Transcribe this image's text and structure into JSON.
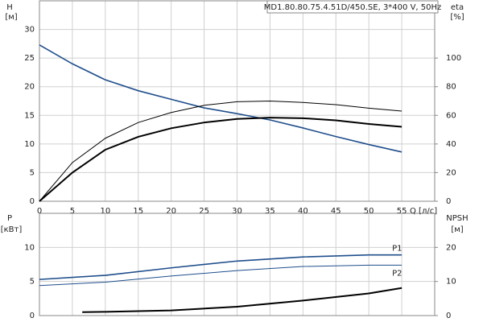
{
  "chart_data": [
    {
      "type": "line",
      "title": "MD1.80.80.75.4.51D/450.SE, 3*400 V, 50Hz",
      "ylabel": "H",
      "yunit": "[м]",
      "y2label": "eta",
      "y2unit": "[%]",
      "xlabel": "Q [л/с]",
      "xlim": [
        0,
        60
      ],
      "xticks": [
        0,
        5,
        10,
        15,
        20,
        25,
        30,
        35,
        40,
        45,
        50,
        55
      ],
      "ylim": [
        0,
        35
      ],
      "yticks": [
        0,
        5,
        10,
        15,
        20,
        25,
        30
      ],
      "y2lim": [
        0,
        140
      ],
      "y2ticks": [
        0,
        20,
        40,
        60,
        80,
        100
      ],
      "grid": true,
      "series": [
        {
          "color": "#1f4e8c",
          "linewidth": 1.6,
          "x": [
            0,
            5,
            10,
            15,
            20,
            25,
            30,
            35,
            40,
            45,
            50,
            55
          ],
          "values": [
            27.3,
            24,
            21.2,
            19.3,
            17.8,
            16.3,
            15.3,
            14.2,
            12.8,
            11.3,
            9.9,
            8.6
          ]
        },
        {
          "color": "#000000",
          "linewidth": 1,
          "axis": "y2",
          "x": [
            0,
            5,
            10,
            15,
            20,
            25,
            30,
            35,
            40,
            45,
            50,
            55
          ],
          "values": [
            0,
            27,
            44,
            55,
            62,
            67,
            69.5,
            70,
            69,
            67.5,
            65,
            63
          ]
        },
        {
          "color": "#000000",
          "linewidth": 2,
          "axis": "y2",
          "x": [
            0,
            5,
            10,
            15,
            20,
            25,
            30,
            35,
            40,
            45,
            50,
            55
          ],
          "values": [
            0,
            20,
            36,
            45,
            51,
            55,
            57.5,
            58.4,
            58,
            56.5,
            54,
            52
          ]
        }
      ]
    },
    {
      "type": "line",
      "ylabel": "P",
      "yunit": "[кВт]",
      "y2label": "NPSH",
      "y2unit": "[м]",
      "xlim": [
        0,
        60
      ],
      "xticks": [
        0,
        5,
        10,
        15,
        20,
        25,
        30,
        35,
        40,
        45,
        50,
        55
      ],
      "ylim": [
        0,
        15
      ],
      "yticks": [
        0,
        5,
        10
      ],
      "y2lim": [
        0,
        30
      ],
      "y2ticks": [
        0,
        10,
        20
      ],
      "grid": true,
      "series": [
        {
          "name": "P1",
          "color": "#1f4e8c",
          "linewidth": 1.6,
          "x": [
            0,
            10,
            20,
            30,
            40,
            50,
            55
          ],
          "values": [
            5.3,
            5.9,
            7.0,
            8.0,
            8.6,
            8.9,
            8.9
          ]
        },
        {
          "name": "P2",
          "color": "#1f4e8c",
          "linewidth": 1,
          "x": [
            0,
            10,
            20,
            30,
            40,
            50,
            55
          ],
          "values": [
            4.4,
            4.9,
            5.8,
            6.6,
            7.2,
            7.4,
            7.4
          ]
        },
        {
          "color": "#000000",
          "linewidth": 2,
          "axis": "y2",
          "x": [
            6.5,
            10,
            20,
            30,
            40,
            50,
            55
          ],
          "values": [
            1,
            1.1,
            1.5,
            2.6,
            4.4,
            6.5,
            8.1
          ]
        }
      ]
    }
  ]
}
